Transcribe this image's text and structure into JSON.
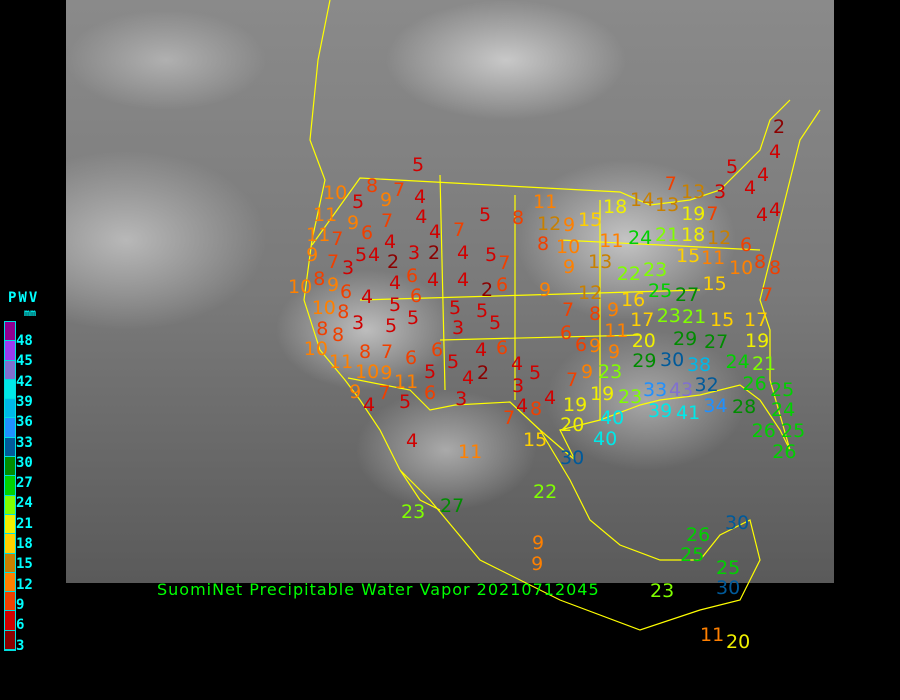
{
  "title": "SuomiNet Precipitable Water Vapor 20210712045",
  "legend": {
    "title": "PWV",
    "unit": "mm",
    "ticks": [
      "48",
      "45",
      "42",
      "39",
      "36",
      "33",
      "30",
      "27",
      "24",
      "21",
      "18",
      "15",
      "12",
      "9",
      "6",
      "3"
    ],
    "colors": [
      "#900090",
      "#9a3cf0",
      "#8070d0",
      "#00e8e8",
      "#00b8e8",
      "#2090ff",
      "#005a9a",
      "#008c00",
      "#00d000",
      "#80ff00",
      "#f0f000",
      "#ffd000",
      "#c88000",
      "#ff8000",
      "#f04000",
      "#d00000",
      "#8b0000"
    ]
  },
  "stations": [
    10,
    5,
    9,
    7,
    8,
    7,
    5,
    4,
    4,
    11,
    9,
    7,
    6,
    11,
    4,
    4,
    7,
    5,
    8,
    11,
    12,
    9,
    15,
    10,
    8,
    5,
    4,
    2,
    3,
    2,
    4,
    5,
    9,
    7,
    8,
    3,
    4,
    6,
    6,
    4,
    4,
    2,
    6,
    7,
    10,
    9,
    6,
    4,
    10,
    8,
    5,
    5,
    5,
    9,
    3,
    5,
    5,
    3,
    5,
    8,
    8,
    10,
    8,
    7,
    6,
    6,
    4,
    6,
    11,
    10,
    9,
    5,
    5,
    4,
    2,
    4,
    5,
    3,
    11,
    9,
    7,
    6,
    3,
    5,
    4,
    7,
    4,
    8,
    4,
    4,
    11,
    15,
    6,
    6,
    9,
    7,
    12,
    8,
    9,
    16,
    17,
    11,
    20,
    9,
    23,
    25,
    22,
    27,
    23,
    21,
    29,
    30,
    29,
    15,
    17,
    19,
    27,
    24,
    21,
    24,
    21,
    18,
    15,
    11,
    15,
    12,
    10,
    8,
    6,
    8,
    7,
    14,
    18,
    13,
    19,
    13,
    7,
    3,
    7,
    4,
    4,
    4,
    5,
    4,
    2,
    4,
    13,
    11,
    9,
    19,
    20,
    19,
    23,
    23,
    33,
    43,
    38,
    32,
    34,
    39,
    41,
    40,
    40,
    30,
    26,
    28,
    25,
    24,
    25,
    26,
    26,
    7,
    9,
    22,
    23,
    27,
    9,
    9,
    23,
    26,
    25,
    30,
    25,
    30,
    11,
    20
  ]
}
